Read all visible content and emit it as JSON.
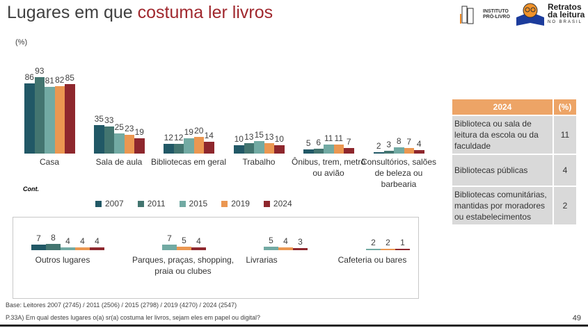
{
  "header": {
    "title_part1": "Lugares em que ",
    "title_part2": "costuma ler livros",
    "logo1": "INSTITUTO PRÓ-LIVRO",
    "logo2_line1": "Retratos",
    "logo2_line2": "da leitura",
    "logo2_line3": "NO BRASIL"
  },
  "unit": "(%)",
  "cont_label": "Cont.",
  "colors": {
    "2007": "#215866",
    "2011": "#437570",
    "2015": "#72aaa3",
    "2019": "#eb9751",
    "2024": "#8e272d"
  },
  "chart_data": [
    {
      "type": "bar",
      "ylabel": "(%)",
      "series_names": [
        "2007",
        "2011",
        "2015",
        "2019",
        "2024"
      ],
      "categories": [
        "Casa",
        "Sala de aula",
        "Bibliotecas em geral",
        "Trabalho",
        "Ônibus, trem, metrô ou avião",
        "Consultórios, salões de beleza ou barbearia"
      ],
      "series": [
        {
          "name": "2007",
          "values": [
            86,
            35,
            12,
            10,
            5,
            2
          ]
        },
        {
          "name": "2011",
          "values": [
            93,
            33,
            12,
            13,
            6,
            3
          ]
        },
        {
          "name": "2015",
          "values": [
            81,
            25,
            19,
            15,
            11,
            8
          ]
        },
        {
          "name": "2019",
          "values": [
            82,
            23,
            20,
            13,
            11,
            7
          ]
        },
        {
          "name": "2024",
          "values": [
            85,
            19,
            14,
            10,
            7,
            4
          ]
        }
      ],
      "legend": "bottom"
    },
    {
      "type": "bar",
      "categories": [
        "Outros lugares",
        "Parques, praças, shopping, praia ou clubes",
        "Livrarias",
        "Cafeteria ou bares"
      ],
      "series": [
        {
          "name": "2007",
          "values": [
            7,
            null,
            null,
            null
          ]
        },
        {
          "name": "2011",
          "values": [
            8,
            null,
            null,
            null
          ]
        },
        {
          "name": "2015",
          "values": [
            4,
            7,
            5,
            2
          ]
        },
        {
          "name": "2019",
          "values": [
            4,
            5,
            4,
            2
          ]
        },
        {
          "name": "2024",
          "values": [
            4,
            4,
            3,
            1
          ]
        }
      ]
    }
  ],
  "table": {
    "headers": [
      "2024",
      "(%)"
    ],
    "rows": [
      [
        "Biblioteca ou sala de leitura da escola ou da faculdade",
        "11"
      ],
      [
        "Bibliotecas públicas",
        "4"
      ],
      [
        "Bibliotecas comunitárias, mantidas por moradores ou estabelecimentos",
        "2"
      ]
    ]
  },
  "footer": {
    "base": "Base: Leitores 2007 (2745) / 2011 (2506) / 2015 (2798) / 2019 (4270) / 2024 (2547)",
    "question": "P.33A) Em qual destes lugares o(a) sr(a) costuma ler livros, sejam eles em papel ou digital?",
    "page": "49"
  }
}
